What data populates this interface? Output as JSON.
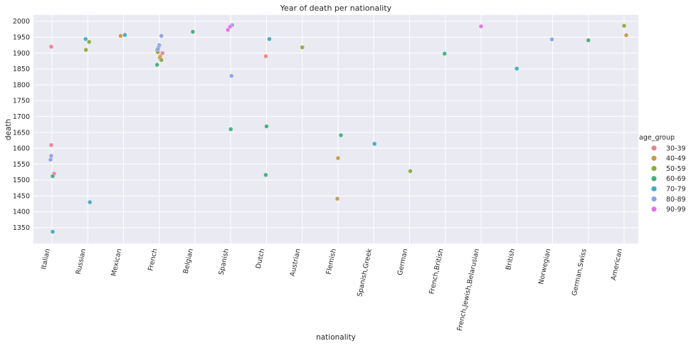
{
  "chart_data": {
    "type": "scatter",
    "title": "Year of death per nationality",
    "xlabel": "nationality",
    "ylabel": "death",
    "ylim": [
      1300,
      2020
    ],
    "yticks": [
      1350,
      1400,
      1450,
      1500,
      1550,
      1600,
      1650,
      1700,
      1750,
      1800,
      1850,
      1900,
      1950,
      2000
    ],
    "grid": true,
    "legend_position": "right",
    "legend_title": "age_group",
    "categories": [
      "Italian",
      "Russian",
      "Mexican",
      "French",
      "Belgian",
      "Spanish",
      "Dutch",
      "Austrian",
      "Flemish",
      "Spanish,Greek",
      "German",
      "French,British",
      "French,Jewish,Belarusian",
      "British",
      "Norwegian",
      "German,Swiss",
      "American"
    ],
    "series": [
      {
        "name": "30-39",
        "color": "#e8848e",
        "points": [
          {
            "x": "Italian",
            "y": 1920,
            "jitter": -0.02
          },
          {
            "x": "Italian",
            "y": 1610,
            "jitter": -0.02
          },
          {
            "x": "Italian",
            "y": 1520,
            "jitter": 0.06
          },
          {
            "x": "French",
            "y": 1900,
            "jitter": 0.09
          },
          {
            "x": "French",
            "y": 1890,
            "jitter": 0.03
          },
          {
            "x": "Dutch",
            "y": 1890,
            "jitter": -0.02
          }
        ]
      },
      {
        "name": "40-49",
        "color": "#c89a44",
        "points": [
          {
            "x": "Mexican",
            "y": 1954,
            "jitter": -0.08
          },
          {
            "x": "French",
            "y": 1885,
            "jitter": 0.02
          },
          {
            "x": "Flemish",
            "y": 1569,
            "jitter": 0.0
          },
          {
            "x": "Flemish",
            "y": 1441,
            "jitter": -0.02
          },
          {
            "x": "American",
            "y": 1956,
            "jitter": 0.06
          }
        ]
      },
      {
        "name": "50-59",
        "color": "#8cab3a",
        "points": [
          {
            "x": "Russian",
            "y": 1935,
            "jitter": 0.04
          },
          {
            "x": "Russian",
            "y": 1910,
            "jitter": -0.05
          },
          {
            "x": "French",
            "y": 1910,
            "jitter": -0.06
          },
          {
            "x": "French",
            "y": 1903,
            "jitter": -0.04
          },
          {
            "x": "French",
            "y": 1878,
            "jitter": 0.06
          },
          {
            "x": "Austrian",
            "y": 1918,
            "jitter": 0.0
          },
          {
            "x": "German",
            "y": 1528,
            "jitter": 0.02
          },
          {
            "x": "American",
            "y": 1986,
            "jitter": 0.0
          }
        ]
      },
      {
        "name": "60-69",
        "color": "#40b080",
        "points": [
          {
            "x": "Italian",
            "y": 1512,
            "jitter": 0.02
          },
          {
            "x": "French",
            "y": 1863,
            "jitter": -0.06
          },
          {
            "x": "Belgian",
            "y": 1967,
            "jitter": -0.06
          },
          {
            "x": "Spanish",
            "y": 1660,
            "jitter": 0.0
          },
          {
            "x": "Dutch",
            "y": 1669,
            "jitter": 0.0
          },
          {
            "x": "Dutch",
            "y": 1516,
            "jitter": -0.02
          },
          {
            "x": "Flemish",
            "y": 1641,
            "jitter": 0.08
          },
          {
            "x": "French,British",
            "y": 1898,
            "jitter": -0.02
          },
          {
            "x": "German,Swiss",
            "y": 1940,
            "jitter": 0.0
          }
        ]
      },
      {
        "name": "70-79",
        "color": "#3eabc2",
        "points": [
          {
            "x": "Italian",
            "y": 1337,
            "jitter": 0.02
          },
          {
            "x": "Russian",
            "y": 1944,
            "jitter": -0.06
          },
          {
            "x": "Russian",
            "y": 1430,
            "jitter": 0.06
          },
          {
            "x": "Mexican",
            "y": 1957,
            "jitter": 0.04
          },
          {
            "x": "Dutch",
            "y": 1944,
            "jitter": 0.08
          },
          {
            "x": "Spanish,Greek",
            "y": 1614,
            "jitter": 0.02
          },
          {
            "x": "British",
            "y": 1851,
            "jitter": 0.0
          }
        ]
      },
      {
        "name": "80-89",
        "color": "#8f9fe8",
        "points": [
          {
            "x": "Italian",
            "y": 1576,
            "jitter": -0.02
          },
          {
            "x": "Italian",
            "y": 1564,
            "jitter": -0.04
          },
          {
            "x": "French",
            "y": 1954,
            "jitter": 0.06
          },
          {
            "x": "French",
            "y": 1925,
            "jitter": 0.0
          },
          {
            "x": "French",
            "y": 1917,
            "jitter": -0.02
          },
          {
            "x": "French",
            "y": 1912,
            "jitter": -0.04
          },
          {
            "x": "Spanish",
            "y": 1988,
            "jitter": 0.04
          },
          {
            "x": "Spanish",
            "y": 1828,
            "jitter": 0.02
          },
          {
            "x": "Norwegian",
            "y": 1943,
            "jitter": -0.02
          }
        ]
      },
      {
        "name": "90-99",
        "color": "#e870e8",
        "points": [
          {
            "x": "Spanish",
            "y": 1973,
            "jitter": -0.08
          },
          {
            "x": "Spanish",
            "y": 1983,
            "jitter": -0.02
          },
          {
            "x": "French,Jewish,Belarusian",
            "y": 1984,
            "jitter": 0.0
          }
        ]
      }
    ]
  }
}
